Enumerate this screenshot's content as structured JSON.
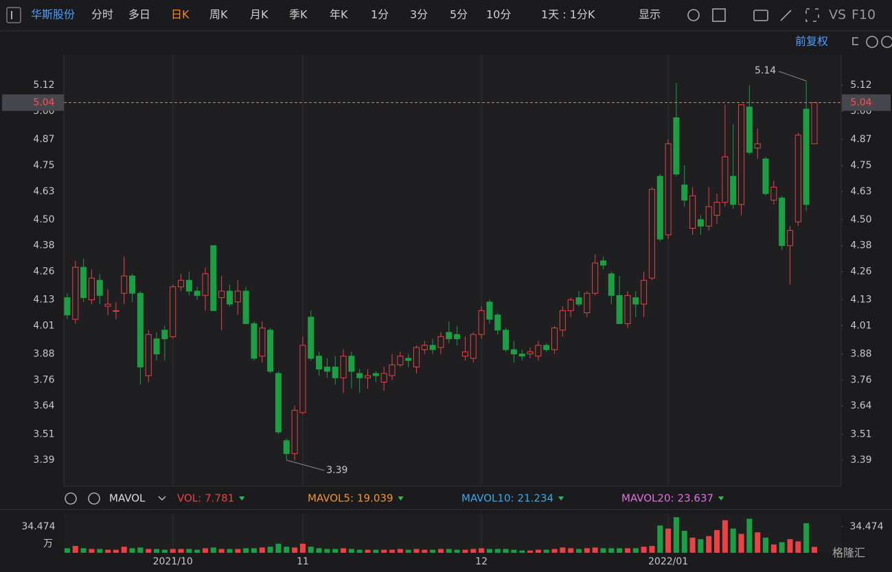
{
  "toolbar": {
    "stock": "华斯股份",
    "tabs": [
      "分时",
      "多日",
      "日K",
      "周K",
      "月K",
      "季K",
      "年K",
      "1分",
      "3分",
      "5分",
      "10分"
    ],
    "active_tab": 2,
    "period": "1天 : 1分K",
    "display": "显示",
    "vs": "VS",
    "f10": "F10"
  },
  "adjust": "前复权",
  "watermark": "格隆汇",
  "chart_data": {
    "type": "candlestick",
    "up_color": "#e84344",
    "down_color": "#1d9e44",
    "candles": [
      [
        4.14,
        4.16,
        4.04,
        4.06
      ],
      [
        4.04,
        4.31,
        4.02,
        4.28
      ],
      [
        4.28,
        4.32,
        4.12,
        4.14
      ],
      [
        4.13,
        4.27,
        4.11,
        4.23
      ],
      [
        4.22,
        4.25,
        4.11,
        4.15
      ],
      [
        4.1,
        4.18,
        4.06,
        4.11
      ],
      [
        4.08,
        4.12,
        4.04,
        4.08
      ],
      [
        4.16,
        4.33,
        4.11,
        4.24
      ],
      [
        4.24,
        4.25,
        4.12,
        4.16
      ],
      [
        4.16,
        4.17,
        3.74,
        3.82
      ],
      [
        3.78,
        3.99,
        3.75,
        3.97
      ],
      [
        3.95,
        3.98,
        3.85,
        3.88
      ],
      [
        3.99,
        4.01,
        3.85,
        3.95
      ],
      [
        3.96,
        4.2,
        3.95,
        4.19
      ],
      [
        4.19,
        4.25,
        4.17,
        4.22
      ],
      [
        4.22,
        4.26,
        4.15,
        4.17
      ],
      [
        4.17,
        4.19,
        4.13,
        4.15
      ],
      [
        4.15,
        4.28,
        4.08,
        4.25
      ],
      [
        4.38,
        4.38,
        4.08,
        4.08
      ],
      [
        4.14,
        4.24,
        3.99,
        4.17
      ],
      [
        4.17,
        4.2,
        4.1,
        4.11
      ],
      [
        4.12,
        4.22,
        4.06,
        4.17
      ],
      [
        4.17,
        4.19,
        4.02,
        4.02
      ],
      [
        4.02,
        4.03,
        3.85,
        3.86
      ],
      [
        3.87,
        4.03,
        3.84,
        4.0
      ],
      [
        3.99,
        4.0,
        3.79,
        3.8
      ],
      [
        3.79,
        3.8,
        3.51,
        3.52
      ],
      [
        3.48,
        3.49,
        3.39,
        3.42
      ],
      [
        3.42,
        3.64,
        3.39,
        3.62
      ],
      [
        3.61,
        3.96,
        3.6,
        3.92
      ],
      [
        4.05,
        4.08,
        3.85,
        3.86
      ],
      [
        3.87,
        3.89,
        3.78,
        3.81
      ],
      [
        3.82,
        3.86,
        3.77,
        3.8
      ],
      [
        3.82,
        3.87,
        3.74,
        3.77
      ],
      [
        3.77,
        3.9,
        3.7,
        3.87
      ],
      [
        3.87,
        3.89,
        3.72,
        3.8
      ],
      [
        3.79,
        3.81,
        3.7,
        3.77
      ],
      [
        3.77,
        3.81,
        3.72,
        3.78
      ],
      [
        3.79,
        3.8,
        3.75,
        3.78
      ],
      [
        3.75,
        3.82,
        3.71,
        3.79
      ],
      [
        3.78,
        3.88,
        3.76,
        3.83
      ],
      [
        3.83,
        3.89,
        3.82,
        3.87
      ],
      [
        3.86,
        3.88,
        3.82,
        3.85
      ],
      [
        3.82,
        3.92,
        3.79,
        3.91
      ],
      [
        3.9,
        3.94,
        3.88,
        3.92
      ],
      [
        3.92,
        3.95,
        3.88,
        3.9
      ],
      [
        3.91,
        3.98,
        3.88,
        3.96
      ],
      [
        3.98,
        4.03,
        3.93,
        3.95
      ],
      [
        3.97,
        4.01,
        3.92,
        3.95
      ],
      [
        3.87,
        3.96,
        3.85,
        3.89
      ],
      [
        3.86,
        3.98,
        3.84,
        3.97
      ],
      [
        3.97,
        4.1,
        3.95,
        4.08
      ],
      [
        4.12,
        4.13,
        4.02,
        4.04
      ],
      [
        4.06,
        4.07,
        3.97,
        3.99
      ],
      [
        3.99,
        4.0,
        3.89,
        3.9
      ],
      [
        3.9,
        3.94,
        3.84,
        3.88
      ],
      [
        3.88,
        3.9,
        3.85,
        3.87
      ],
      [
        3.88,
        3.91,
        3.86,
        3.89
      ],
      [
        3.87,
        3.94,
        3.85,
        3.92
      ],
      [
        3.92,
        3.93,
        3.89,
        3.9
      ],
      [
        3.9,
        4.01,
        3.88,
        4.0
      ],
      [
        3.99,
        4.1,
        3.96,
        4.08
      ],
      [
        4.08,
        4.14,
        4.05,
        4.13
      ],
      [
        4.14,
        4.17,
        4.1,
        4.11
      ],
      [
        4.07,
        4.17,
        4.05,
        4.16
      ],
      [
        4.16,
        4.34,
        4.15,
        4.3
      ],
      [
        4.31,
        4.33,
        4.27,
        4.29
      ],
      [
        4.25,
        4.26,
        4.11,
        4.15
      ],
      [
        4.15,
        4.24,
        4.02,
        4.02
      ],
      [
        4.02,
        4.17,
        4.0,
        4.15
      ],
      [
        4.14,
        4.17,
        4.05,
        4.11
      ],
      [
        4.11,
        4.26,
        4.05,
        4.22
      ],
      [
        4.23,
        4.65,
        4.22,
        4.64
      ],
      [
        4.7,
        4.71,
        4.4,
        4.41
      ],
      [
        4.43,
        4.87,
        4.41,
        4.85
      ],
      [
        4.97,
        5.13,
        4.7,
        4.71
      ],
      [
        4.66,
        4.75,
        4.56,
        4.59
      ],
      [
        4.46,
        4.65,
        4.43,
        4.61
      ],
      [
        4.5,
        4.52,
        4.43,
        4.47
      ],
      [
        4.47,
        4.65,
        4.45,
        4.56
      ],
      [
        4.52,
        4.62,
        4.48,
        4.58
      ],
      [
        4.58,
        5.03,
        4.56,
        4.79
      ],
      [
        4.7,
        4.94,
        4.55,
        4.57
      ],
      [
        4.57,
        5.03,
        4.52,
        5.03
      ],
      [
        5.02,
        5.12,
        4.8,
        4.81
      ],
      [
        4.83,
        4.92,
        4.78,
        4.85
      ],
      [
        4.78,
        4.79,
        4.61,
        4.62
      ],
      [
        4.59,
        4.68,
        4.57,
        4.65
      ],
      [
        4.6,
        4.61,
        4.36,
        4.38
      ],
      [
        4.38,
        4.47,
        4.2,
        4.45
      ],
      [
        4.49,
        4.9,
        4.47,
        4.89
      ],
      [
        5.01,
        5.14,
        4.54,
        4.57
      ],
      [
        4.85,
        5.04,
        4.85,
        5.04
      ]
    ],
    "xlim": [
      -0.42,
      95.3
    ],
    "xticks": [
      {
        "value": 13,
        "label": "2021/10"
      },
      {
        "value": 29,
        "label": "11"
      },
      {
        "value": 51,
        "label": "12"
      },
      {
        "value": 74,
        "label": "2022/01"
      }
    ],
    "ylim": [
      3.27,
      5.26
    ],
    "yticks": [
      3.39,
      3.51,
      3.64,
      3.76,
      3.88,
      4.01,
      4.13,
      4.26,
      4.38,
      {
        "value": 4.5,
        "label": "4.50"
      },
      4.63,
      4.75,
      4.87,
      {
        "value": 5,
        "label": "5.00"
      },
      5.12
    ],
    "last_price": 5.04,
    "max_label": 5.14,
    "max_index": 91,
    "min_label": 3.39,
    "min_index": 27,
    "volume": {
      "indicator": "MAVOL",
      "values": [
        6,
        9,
        6,
        5,
        5,
        4,
        4,
        8,
        6,
        7,
        5,
        5,
        4,
        5,
        5,
        5,
        4,
        6,
        7,
        5,
        5,
        5,
        6,
        6,
        7,
        8,
        12,
        8,
        7,
        12,
        8,
        6,
        5,
        5,
        6,
        5,
        4,
        4,
        4,
        4,
        4,
        5,
        4,
        5,
        4,
        4,
        5,
        5,
        4,
        4,
        5,
        6,
        5,
        5,
        5,
        4,
        3,
        3,
        4,
        4,
        5,
        7,
        6,
        5,
        6,
        7,
        6,
        6,
        6,
        6,
        6,
        8,
        9,
        36,
        32,
        47,
        29,
        20,
        18,
        22,
        30,
        43,
        32,
        25,
        45,
        27,
        20,
        11,
        14,
        18,
        15,
        39,
        7.781
      ],
      "ylim": [
        0,
        51.7
      ],
      "yticks": [
        34.474
      ],
      "unit": "万",
      "legend": [
        {
          "name": "VOL:",
          "value": 7.781,
          "color": "#e84344"
        },
        {
          "name": "MAVOL5:",
          "value": 19.039,
          "color": "#f0952e"
        },
        {
          "name": "MAVOL10:",
          "value": 21.234,
          "color": "#3aa8e8"
        },
        {
          "name": "MAVOL20:",
          "value": 23.637,
          "color": "#e070e0"
        }
      ]
    }
  }
}
